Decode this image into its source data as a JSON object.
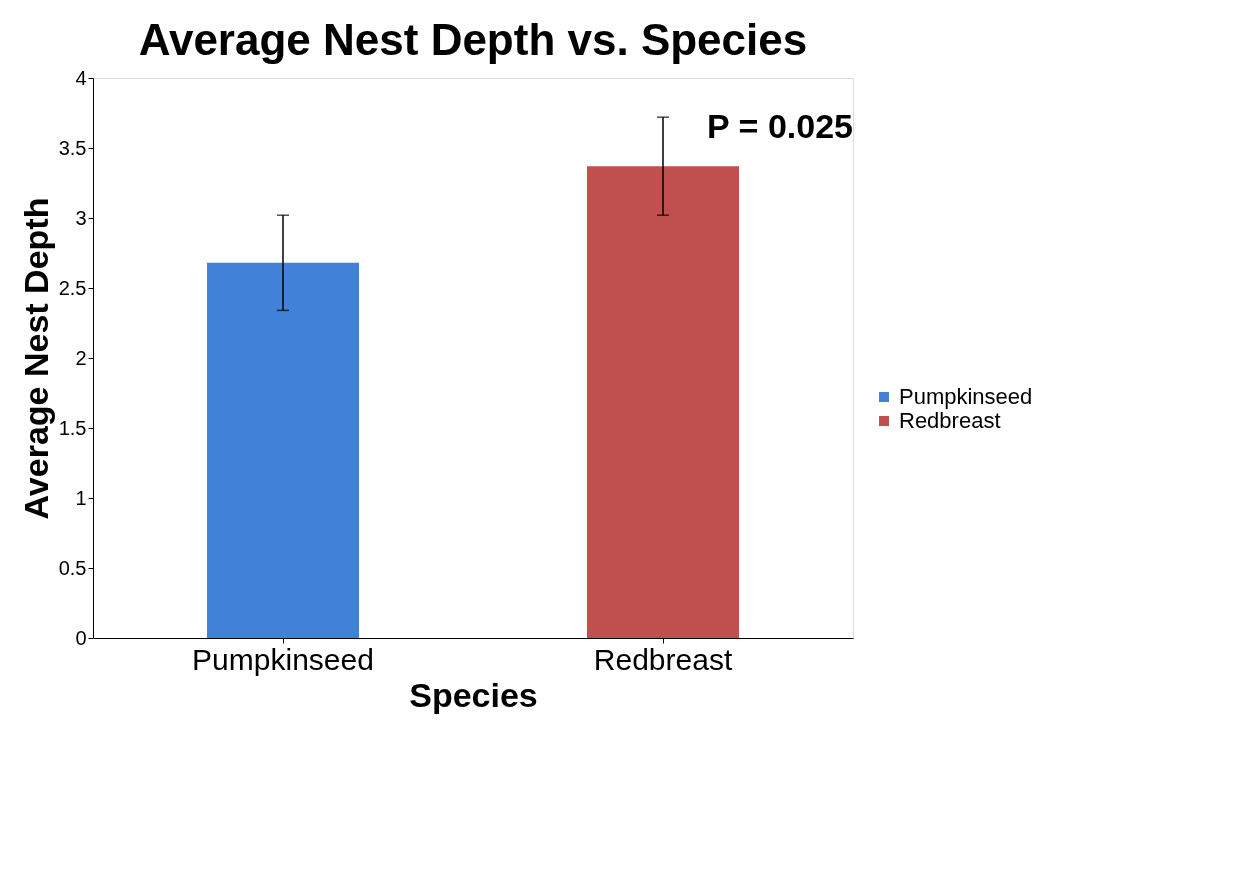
{
  "chart_data": {
    "type": "bar",
    "title": "Average Nest Depth vs. Species",
    "xlabel": "Species",
    "ylabel": "Average Nest Depth",
    "categories": [
      "Pumpkinseed",
      "Redbreast"
    ],
    "series": [
      {
        "name": "Pumpkinseed",
        "color": "#4181d7",
        "values": [
          2.68,
          null
        ],
        "errors": [
          0.34,
          null
        ]
      },
      {
        "name": "Redbreast",
        "color": "#bf504e",
        "values": [
          null,
          3.37
        ],
        "errors": [
          null,
          0.35
        ]
      }
    ],
    "ylim": [
      0,
      4
    ],
    "yticks": [
      0,
      0.5,
      1,
      1.5,
      2,
      2.5,
      3,
      3.5,
      4
    ],
    "grid": false,
    "legend": "right",
    "annotations": [
      "P = 0.025"
    ]
  }
}
